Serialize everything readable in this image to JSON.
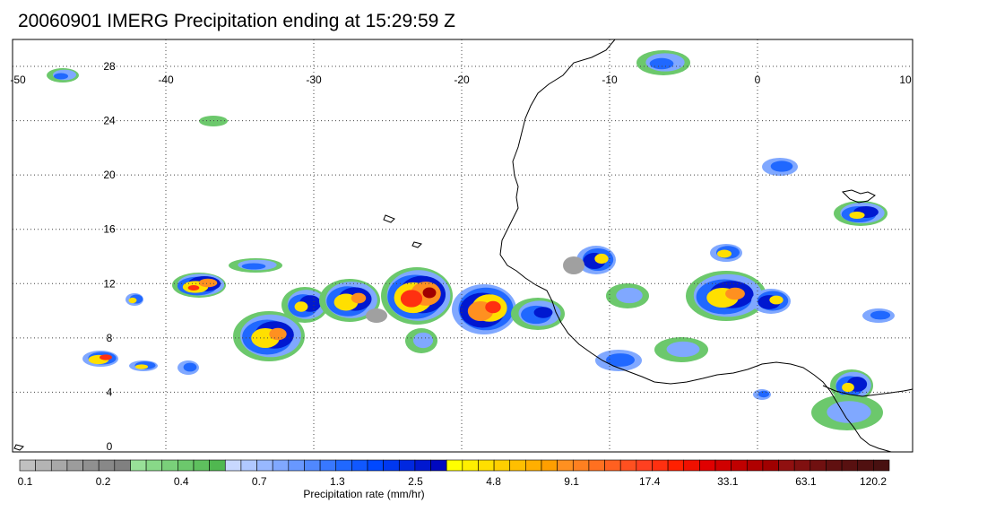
{
  "title": "20060901 IMERG Precipitation ending at 15:29:59 Z",
  "map": {
    "lon_range": [
      -50,
      10
    ],
    "lat_range": [
      -1,
      28.5
    ],
    "lon_ticks": [
      "-50",
      "-40",
      "-30",
      "-20",
      "-10",
      "0",
      "10"
    ],
    "lon_tick_values": [
      -50,
      -40,
      -30,
      -20,
      -10,
      0,
      10
    ],
    "lat_ticks": [
      "28",
      "24",
      "20",
      "16",
      "12",
      "8",
      "4",
      "0"
    ],
    "lat_tick_values": [
      28,
      24,
      20,
      16,
      12,
      8,
      4,
      0
    ],
    "grid": "dotted",
    "coastline_color": "#000000"
  },
  "colorbar": {
    "title": "Precipitation rate (mm/hr)",
    "labels": [
      "0.1",
      "0.2",
      "0.4",
      "0.7",
      "1.3",
      "2.5",
      "4.8",
      "9.1",
      "17.4",
      "33.1",
      "63.1",
      "120.2"
    ],
    "colors": [
      "#c0c0c0",
      "#b4b4b4",
      "#a8a8a8",
      "#9c9c9c",
      "#909090",
      "#888888",
      "#808080",
      "#98e098",
      "#88d888",
      "#7ad07a",
      "#6cc86c",
      "#5ec05e",
      "#50b850",
      "#c8d8ff",
      "#b0c8ff",
      "#98b8ff",
      "#80a8ff",
      "#6898ff",
      "#5088ff",
      "#3878ff",
      "#2068ff",
      "#1058ff",
      "#0048ff",
      "#0038f0",
      "#0028e0",
      "#0018d0",
      "#0008c0",
      "#ffff00",
      "#ffef00",
      "#ffdf00",
      "#ffcf00",
      "#ffbf00",
      "#ffaf00",
      "#ff9f00",
      "#ff9020",
      "#ff8020",
      "#ff7020",
      "#ff6020",
      "#ff5020",
      "#ff4020",
      "#ff3010",
      "#ff2000",
      "#f01000",
      "#e00000",
      "#d00000",
      "#c00000",
      "#b00000",
      "#a00000",
      "#901010",
      "#801010",
      "#701010",
      "#601010",
      "#581010",
      "#501010",
      "#481010"
    ]
  }
}
